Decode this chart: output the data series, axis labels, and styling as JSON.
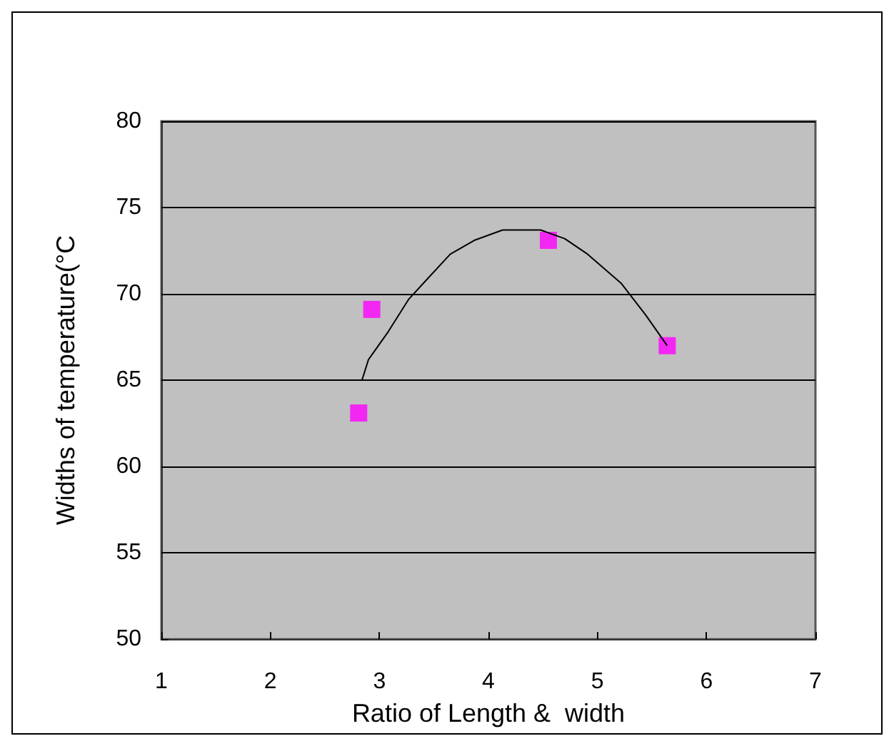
{
  "chart_data": {
    "type": "scatter",
    "xlabel": "Ratio of Length &  width",
    "ylabel": "Widths of temperature(°C",
    "xlim": [
      1,
      7
    ],
    "xticks": [
      1,
      2,
      3,
      4,
      5,
      6,
      7
    ],
    "ylim": [
      50,
      80
    ],
    "yticks": [
      50,
      55,
      60,
      65,
      70,
      75,
      80
    ],
    "grid": "y",
    "series": [
      {
        "marker": "square",
        "color": "#ff00ff",
        "x": [
          2.81,
          2.93,
          4.55,
          5.64
        ],
        "values": [
          63.1,
          69.1,
          73.1,
          67.0
        ]
      },
      {
        "type": "line",
        "marker": "none",
        "color": "#000000",
        "x": [
          2.84,
          2.9,
          3.08,
          3.27,
          3.43,
          3.65,
          3.87,
          4.13,
          4.48,
          4.7,
          4.91,
          5.22,
          5.44,
          5.64
        ],
        "values": [
          65.0,
          66.2,
          67.8,
          69.7,
          70.8,
          72.3,
          73.1,
          73.7,
          73.7,
          73.2,
          72.3,
          70.6,
          68.8,
          67.0
        ]
      }
    ]
  }
}
